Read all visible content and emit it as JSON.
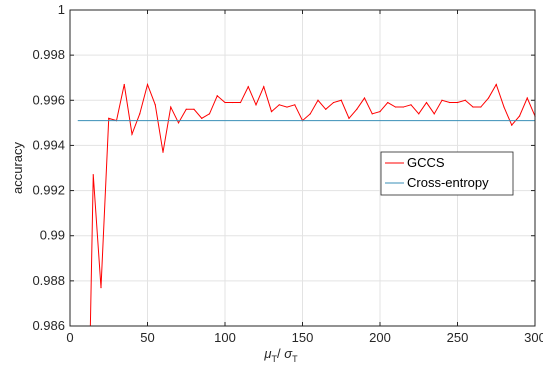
{
  "chart_data": {
    "type": "line",
    "title": "",
    "xlabel": "μ_T / σ_T",
    "xlabel_parts": {
      "mu": "μ",
      "sigma": "σ",
      "sub": "T",
      "sep": "/ "
    },
    "ylabel": "accuracy",
    "xlim": [
      0,
      300
    ],
    "ylim": [
      0.986,
      1
    ],
    "xticks": [
      0,
      50,
      100,
      150,
      200,
      250,
      300
    ],
    "xtick_labels": [
      "0",
      "50",
      "100",
      "150",
      "200",
      "250",
      "300"
    ],
    "yticks": [
      0.986,
      0.988,
      0.99,
      0.992,
      0.994,
      0.996,
      0.998,
      1
    ],
    "ytick_labels": [
      "0.986",
      "0.988",
      "0.99",
      "0.992",
      "0.994",
      "0.996",
      "0.998",
      "1"
    ],
    "grid": true,
    "legend_position": "right",
    "series": [
      {
        "name": "GCCS",
        "color": "#ff0000",
        "x": [
          15,
          20,
          25,
          30,
          35,
          40,
          45,
          50,
          55,
          60,
          65,
          70,
          75,
          80,
          85,
          90,
          95,
          100,
          105,
          110,
          115,
          120,
          125,
          130,
          135,
          140,
          145,
          150,
          155,
          160,
          165,
          170,
          175,
          180,
          185,
          190,
          195,
          200,
          205,
          210,
          215,
          220,
          225,
          230,
          235,
          240,
          245,
          250,
          255,
          260,
          265,
          270,
          275,
          280,
          285,
          290,
          295,
          300
        ],
        "y": [
          0.9927,
          0.9877,
          0.9952,
          0.9951,
          0.9967,
          0.9945,
          0.9954,
          0.9967,
          0.9958,
          0.9937,
          0.9957,
          0.995,
          0.9956,
          0.9956,
          0.9952,
          0.9954,
          0.9962,
          0.9959,
          0.9959,
          0.9959,
          0.9966,
          0.9958,
          0.9966,
          0.9955,
          0.9958,
          0.9957,
          0.9958,
          0.9951,
          0.9954,
          0.996,
          0.9956,
          0.9959,
          0.996,
          0.9952,
          0.9956,
          0.9961,
          0.9954,
          0.9955,
          0.9959,
          0.9957,
          0.9957,
          0.9958,
          0.9954,
          0.9959,
          0.9954,
          0.996,
          0.9959,
          0.9959,
          0.996,
          0.9957,
          0.9957,
          0.9961,
          0.9967,
          0.9957,
          0.9949,
          0.9953,
          0.9961,
          0.9953
        ],
        "start_below_axis": {
          "x": 13,
          "y": 0.9855
        }
      },
      {
        "name": "Cross-entropy",
        "color": "#3a8fb7",
        "x": [
          5,
          300
        ],
        "y": [
          0.9951,
          0.9951
        ]
      }
    ]
  }
}
